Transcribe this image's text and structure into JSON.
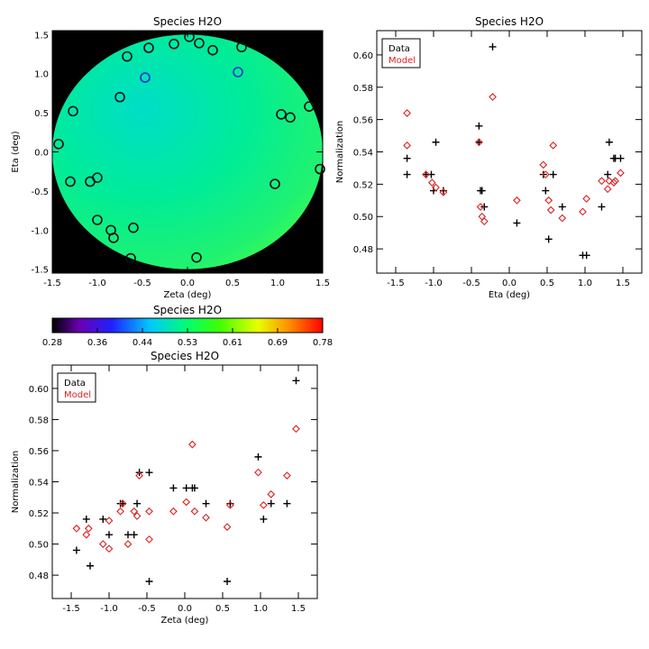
{
  "chart_data": [
    {
      "type": "heatmap",
      "title": "Species H2O",
      "xlabel": "Zeta (deg)",
      "ylabel": "Eta (deg)",
      "xlim": [
        -1.5,
        1.5
      ],
      "ylim": [
        -1.55,
        1.55
      ],
      "xticks": [
        "-1.5",
        "-1.0",
        "-0.5",
        "0.0",
        "0.5",
        "1.0",
        "1.5"
      ],
      "yticks": [
        "-1.5",
        "-1.0",
        "-0.5",
        "0.0",
        "0.5",
        "1.0",
        "1.5"
      ],
      "field_range": [
        0.48,
        0.6
      ],
      "circles": [
        {
          "x": -1.43,
          "y": 0.1,
          "v": 0.53
        },
        {
          "x": -1.27,
          "y": 0.52,
          "v": 0.53
        },
        {
          "x": -1.3,
          "y": -0.38,
          "v": 0.53
        },
        {
          "x": -1.08,
          "y": -0.38,
          "v": 0.53
        },
        {
          "x": -1.0,
          "y": -0.33,
          "v": 0.53
        },
        {
          "x": -1.0,
          "y": -0.87,
          "v": 0.53
        },
        {
          "x": -0.85,
          "y": -1.0,
          "v": 0.53
        },
        {
          "x": -0.82,
          "y": -1.1,
          "v": 0.53
        },
        {
          "x": -0.75,
          "y": 0.7,
          "v": 0.53
        },
        {
          "x": -0.67,
          "y": 1.22,
          "v": 0.53
        },
        {
          "x": -0.6,
          "y": -0.97,
          "v": 0.53
        },
        {
          "x": -0.63,
          "y": -1.36,
          "v": 0.53
        },
        {
          "x": -0.47,
          "y": 0.95,
          "v": 0.47
        },
        {
          "x": -0.43,
          "y": 1.33,
          "v": 0.53
        },
        {
          "x": -0.15,
          "y": 1.38,
          "v": 0.53
        },
        {
          "x": 0.02,
          "y": 1.47,
          "v": 0.53
        },
        {
          "x": 0.1,
          "y": -1.35,
          "v": 0.53
        },
        {
          "x": 0.13,
          "y": 1.39,
          "v": 0.53
        },
        {
          "x": 0.28,
          "y": 1.3,
          "v": 0.53
        },
        {
          "x": 0.56,
          "y": 1.02,
          "v": 0.47
        },
        {
          "x": 0.6,
          "y": 1.34,
          "v": 0.53
        },
        {
          "x": 0.97,
          "y": -0.41,
          "v": 0.53
        },
        {
          "x": 1.04,
          "y": 0.48,
          "v": 0.53
        },
        {
          "x": 1.14,
          "y": 0.44,
          "v": 0.53
        },
        {
          "x": 1.35,
          "y": 0.58,
          "v": 0.53
        },
        {
          "x": 1.47,
          "y": -0.22,
          "v": 0.53
        }
      ]
    },
    {
      "type": "scatter",
      "title": "Species H2O",
      "xlabel": "Eta (deg)",
      "ylabel": "Normalization",
      "xlim": [
        -1.75,
        1.75
      ],
      "ylim": [
        0.465,
        0.615
      ],
      "xticks": [
        "-1.5",
        "-1.0",
        "-0.5",
        "0.0",
        "0.5",
        "1.0",
        "1.5"
      ],
      "yticks": [
        "0.48",
        "0.50",
        "0.52",
        "0.54",
        "0.56",
        "0.58",
        "0.60"
      ],
      "legend": [
        "Data",
        "Model"
      ],
      "series": [
        {
          "name": "Data",
          "color": "#000000",
          "marker": "plus",
          "points": [
            [
              -1.35,
              0.536
            ],
            [
              -1.35,
              0.526
            ],
            [
              -1.1,
              0.526
            ],
            [
              -1.03,
              0.526
            ],
            [
              -0.97,
              0.546
            ],
            [
              -0.87,
              0.516
            ],
            [
              -0.4,
              0.556
            ],
            [
              -0.4,
              0.546
            ],
            [
              -0.38,
              0.516
            ],
            [
              -0.36,
              0.516
            ],
            [
              -0.33,
              0.506
            ],
            [
              -0.22,
              0.605
            ],
            [
              0.1,
              0.496
            ],
            [
              0.48,
              0.516
            ],
            [
              0.52,
              0.486
            ],
            [
              0.58,
              0.526
            ],
            [
              0.7,
              0.506
            ],
            [
              0.97,
              0.476
            ],
            [
              1.02,
              0.476
            ],
            [
              1.22,
              0.506
            ],
            [
              1.3,
              0.526
            ],
            [
              1.32,
              0.546
            ],
            [
              1.38,
              0.536
            ],
            [
              1.4,
              0.536
            ],
            [
              1.47,
              0.536
            ],
            [
              0.45,
              0.526
            ],
            [
              -1.0,
              0.516
            ]
          ]
        },
        {
          "name": "Model",
          "color": "#dd2222",
          "marker": "diamond",
          "points": [
            [
              -1.35,
              0.564
            ],
            [
              -1.35,
              0.544
            ],
            [
              -1.1,
              0.526
            ],
            [
              -1.02,
              0.521
            ],
            [
              -0.97,
              0.518
            ],
            [
              -0.87,
              0.515
            ],
            [
              -0.4,
              0.546
            ],
            [
              -0.38,
              0.506
            ],
            [
              -0.36,
              0.5
            ],
            [
              -0.33,
              0.497
            ],
            [
              -0.22,
              0.574
            ],
            [
              0.1,
              0.51
            ],
            [
              0.45,
              0.532
            ],
            [
              0.48,
              0.526
            ],
            [
              0.52,
              0.51
            ],
            [
              0.58,
              0.544
            ],
            [
              0.7,
              0.499
            ],
            [
              0.97,
              0.503
            ],
            [
              1.02,
              0.511
            ],
            [
              1.22,
              0.522
            ],
            [
              1.3,
              0.517
            ],
            [
              1.32,
              0.522
            ],
            [
              1.38,
              0.521
            ],
            [
              1.4,
              0.522
            ],
            [
              1.47,
              0.527
            ],
            [
              0.55,
              0.504
            ]
          ]
        }
      ]
    },
    {
      "type": "colorbar",
      "title": "Species H2O",
      "range": [
        0.28,
        0.78
      ],
      "ticks": [
        "0.28",
        "0.36",
        "0.44",
        "0.53",
        "0.61",
        "0.69",
        "0.78"
      ]
    },
    {
      "type": "scatter",
      "title": "Species H2O",
      "xlabel": "Zeta (deg)",
      "ylabel": "Normalization",
      "xlim": [
        -1.75,
        1.75
      ],
      "ylim": [
        0.465,
        0.615
      ],
      "xticks": [
        "-1.5",
        "-1.0",
        "-0.5",
        "0.0",
        "0.5",
        "1.0",
        "1.5"
      ],
      "yticks": [
        "0.48",
        "0.50",
        "0.52",
        "0.54",
        "0.56",
        "0.58",
        "0.60"
      ],
      "legend": [
        "Data",
        "Model"
      ],
      "series": [
        {
          "name": "Data",
          "color": "#000000",
          "marker": "plus",
          "points": [
            [
              -1.43,
              0.496
            ],
            [
              -1.3,
              0.516
            ],
            [
              -1.25,
              0.486
            ],
            [
              -1.08,
              0.516
            ],
            [
              -1.0,
              0.506
            ],
            [
              -0.85,
              0.526
            ],
            [
              -0.82,
              0.526
            ],
            [
              -0.75,
              0.506
            ],
            [
              -0.67,
              0.506
            ],
            [
              -0.63,
              0.526
            ],
            [
              -0.6,
              0.546
            ],
            [
              -0.47,
              0.546
            ],
            [
              -0.47,
              0.476
            ],
            [
              -0.15,
              0.536
            ],
            [
              0.02,
              0.536
            ],
            [
              0.1,
              0.536
            ],
            [
              0.13,
              0.536
            ],
            [
              0.28,
              0.526
            ],
            [
              0.56,
              0.476
            ],
            [
              0.6,
              0.526
            ],
            [
              0.97,
              0.556
            ],
            [
              1.04,
              0.516
            ],
            [
              1.14,
              0.526
            ],
            [
              1.35,
              0.526
            ],
            [
              1.47,
              0.605
            ]
          ]
        },
        {
          "name": "Model",
          "color": "#dd2222",
          "marker": "diamond",
          "points": [
            [
              -1.43,
              0.51
            ],
            [
              -1.3,
              0.506
            ],
            [
              -1.27,
              0.51
            ],
            [
              -1.08,
              0.5
            ],
            [
              -1.0,
              0.515
            ],
            [
              -1.0,
              0.497
            ],
            [
              -0.85,
              0.521
            ],
            [
              -0.82,
              0.526
            ],
            [
              -0.75,
              0.5
            ],
            [
              -0.67,
              0.521
            ],
            [
              -0.63,
              0.518
            ],
            [
              -0.6,
              0.544
            ],
            [
              -0.47,
              0.521
            ],
            [
              -0.47,
              0.503
            ],
            [
              -0.15,
              0.521
            ],
            [
              0.02,
              0.527
            ],
            [
              0.1,
              0.564
            ],
            [
              0.13,
              0.521
            ],
            [
              0.28,
              0.517
            ],
            [
              0.56,
              0.511
            ],
            [
              0.6,
              0.525
            ],
            [
              0.97,
              0.546
            ],
            [
              1.04,
              0.525
            ],
            [
              1.14,
              0.532
            ],
            [
              1.35,
              0.544
            ],
            [
              1.47,
              0.574
            ]
          ]
        }
      ]
    }
  ]
}
